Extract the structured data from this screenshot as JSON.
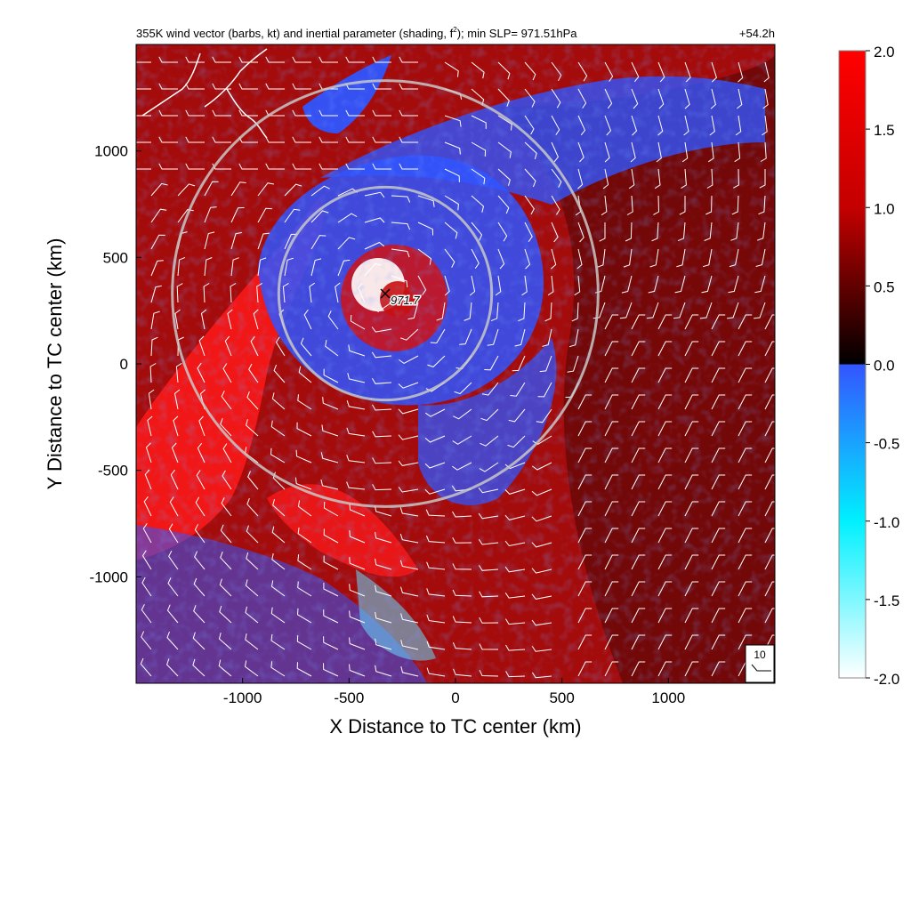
{
  "header": {
    "title_pre": "355K wind vector (barbs, kt) and inertial parameter (shading, f",
    "title_sup": "2",
    "title_post": "); min SLP= 971.51hPa",
    "time_label": "+54.2h"
  },
  "chart_data": {
    "type": "heatmap",
    "title": "355K wind vector (barbs, kt) and inertial parameter (shading, f2); min SLP= 971.51hPa",
    "time": "+54.2h",
    "xlabel": "X Distance to TC center (km)",
    "ylabel": "Y Distance to TC center (km)",
    "xlim": [
      -1500,
      1500
    ],
    "ylim": [
      -1500,
      1500
    ],
    "xticks": [
      -1000,
      -500,
      0,
      500,
      1000
    ],
    "yticks": [
      -1000,
      -500,
      0,
      500,
      1000
    ],
    "xtick_labels": [
      "-1000",
      "-500",
      "0",
      "500",
      "1000"
    ],
    "ytick_labels": [
      "-1000",
      "-500",
      "0",
      "500",
      "1000"
    ],
    "colorbar": {
      "range": [
        -2.0,
        2.0
      ],
      "ticks": [
        "2.0",
        "1.5",
        "1.0",
        "0.5",
        "0.0",
        "-0.5",
        "-1.0",
        "-1.5",
        "-2.0"
      ],
      "tick_values": [
        2.0,
        1.5,
        1.0,
        0.5,
        0.0,
        -0.5,
        -1.0,
        -1.5,
        -2.0
      ],
      "colors": {
        "max": "#ff0000",
        "mid_pos": "#8b0000",
        "zero": "#000000",
        "zero_neg": "#3355ff",
        "mid_neg": "#00e5ff",
        "min": "#ffffff"
      }
    },
    "center_label": "971.7",
    "center": {
      "x": -330,
      "y": 330
    },
    "range_rings": [
      {
        "center_x": -330,
        "center_y": 330,
        "radius_km": 500
      },
      {
        "center_x": -330,
        "center_y": 330,
        "radius_km": 1000
      }
    ],
    "barb_reference": {
      "label": "10",
      "units": "kt"
    },
    "grid": false
  },
  "colors": {
    "background_red": "#b10d0d",
    "bright_red": "#ff1a1a",
    "dark_red": "#4a0606",
    "blue": "#2f55ff",
    "cyan": "#66ddff",
    "coast": "#ffffff",
    "ring": "#c8c8c8"
  }
}
